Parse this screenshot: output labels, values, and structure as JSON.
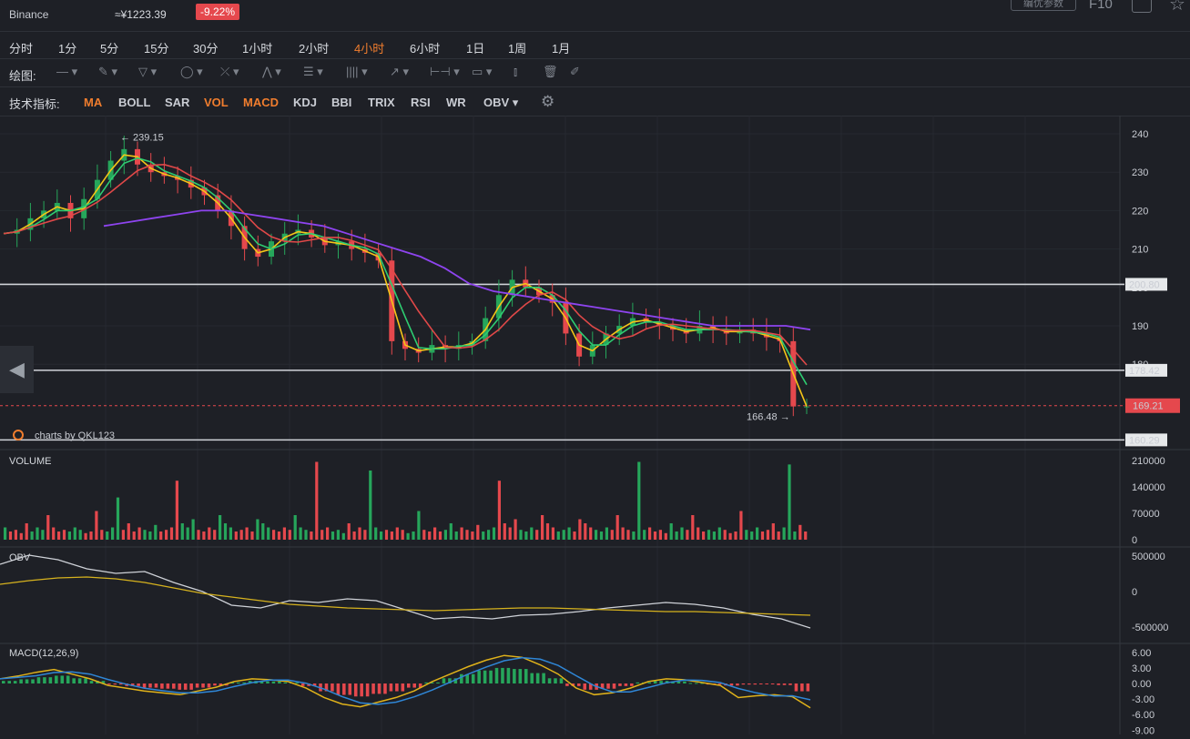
{
  "header": {
    "exchange": "Binance",
    "converted_price": "≈¥1223.39",
    "change_badge": "-9.22%",
    "settings_button": "编优参数",
    "f10_label": "F10"
  },
  "timeframes": [
    "分时",
    "1分",
    "5分",
    "15分",
    "30分",
    "1小时",
    "2小时",
    "4小时",
    "6小时",
    "1日",
    "1周",
    "1月"
  ],
  "active_timeframe": "4小时",
  "drawing_toolbar": {
    "label": "绘图:",
    "tools": [
      "line-tool-icon",
      "pen-tool-icon",
      "triangle-tool-icon",
      "circle-tool-icon",
      "cross-tool-icon",
      "pattern-tool-icon",
      "fib-tool-icon",
      "bars-tool-icon",
      "arrow-tool-icon",
      "measure-tool-icon",
      "comment-tool-icon",
      "candle-tool-icon",
      "delete-icon",
      "brush-icon"
    ]
  },
  "indicator_toolbar": {
    "label": "技术指标:",
    "items": [
      {
        "label": "MA",
        "active": true
      },
      {
        "label": "BOLL",
        "active": false
      },
      {
        "label": "SAR",
        "active": false
      },
      {
        "label": "VOL",
        "active": true
      },
      {
        "label": "MACD",
        "active": true
      },
      {
        "label": "KDJ",
        "active": false
      },
      {
        "label": "BBI",
        "active": false
      },
      {
        "label": "TRIX",
        "active": false
      },
      {
        "label": "RSI",
        "active": false
      },
      {
        "label": "WR",
        "active": false
      },
      {
        "label": "OBV ▾",
        "active": false
      }
    ]
  },
  "watermark": "charts by QKL123",
  "price_axis": {
    "ticks": [
      "240",
      "230",
      "220",
      "210",
      "200",
      "190",
      "180"
    ],
    "tick_values": [
      240,
      230,
      220,
      210,
      200,
      190,
      180
    ],
    "hlines": [
      {
        "label": "200.80",
        "value": 200.8
      },
      {
        "label": "178.42",
        "value": 178.42
      },
      {
        "label": "160.29",
        "value": 160.29
      }
    ],
    "current": {
      "label": "169.21",
      "value": 169.21
    },
    "max_marker": {
      "label": "239.15",
      "value": 239.15
    },
    "min_marker": {
      "label": "166.48",
      "value": 166.48
    }
  },
  "volume_pane": {
    "label": "VOLUME",
    "ticks": [
      "210000",
      "140000",
      "70000",
      "0"
    ],
    "tick_values": [
      210000,
      140000,
      70000,
      0
    ]
  },
  "obv_pane": {
    "label": "OBV",
    "ticks": [
      "500000",
      "0",
      "-500000"
    ],
    "tick_values": [
      500000,
      0,
      -500000
    ]
  },
  "macd_pane": {
    "label": "MACD(12,26,9)",
    "ticks": [
      "6.00",
      "3.00",
      "0.00",
      "-3.00",
      "-6.00",
      "-9.00"
    ],
    "tick_values": [
      6,
      3,
      0,
      -3,
      -6,
      -9
    ]
  },
  "colors": {
    "up": "#26a65b",
    "down": "#e5484d",
    "ma_fast": "#f5c518",
    "ma_mid": "#2ecc71",
    "ma_slow": "#e04848",
    "ma_long": "#8e44ef",
    "accent": "#f07d2e"
  },
  "series_shape": {
    "price_path": [
      214,
      215,
      218,
      220,
      222,
      218,
      223,
      228,
      233,
      236,
      232,
      230,
      229,
      228,
      226,
      224,
      220,
      216,
      210,
      208,
      212,
      214,
      215,
      213,
      211,
      212,
      210,
      209,
      207,
      186,
      184,
      183,
      185,
      184,
      185,
      186,
      192,
      198,
      202,
      200,
      198,
      196,
      188,
      182,
      185,
      188,
      190,
      192,
      191,
      190,
      189,
      188,
      190,
      189,
      188,
      189,
      188,
      187,
      186,
      169,
      169
    ],
    "ma_long_path": [
      216,
      217,
      218,
      219,
      220,
      220,
      219,
      218,
      217,
      216,
      214,
      212,
      210,
      208,
      205,
      201,
      199,
      198,
      197,
      196,
      195,
      194,
      193,
      192,
      191,
      190,
      190,
      190,
      190,
      189
    ],
    "volume_heights": [
      0.15,
      0.1,
      0.12,
      0.08,
      0.2,
      0.1,
      0.15,
      0.12,
      0.3,
      0.15,
      0.1,
      0.12,
      0.1,
      0.15,
      0.12,
      0.08,
      0.1,
      0.35,
      0.12,
      0.1,
      0.15,
      0.1,
      0.12,
      0.2,
      0.1,
      0.15,
      0.12,
      0.1,
      0.18,
      0.1,
      0.12,
      0.15,
      0.72,
      0.2,
      0.15,
      0.25,
      0.12,
      0.1,
      0.15,
      0.12,
      0.3,
      0.2,
      0.15,
      0.1,
      0.12,
      0.15,
      0.1,
      0.25,
      0.2,
      0.15,
      0.12,
      0.1,
      0.15,
      0.12,
      0.3,
      0.15,
      0.12,
      0.1,
      0.95,
      0.12
    ],
    "obv_path": [
      620,
      610,
      615,
      625,
      630,
      628,
      640,
      650,
      665,
      668,
      660,
      662,
      658,
      660,
      670,
      680,
      678,
      680,
      676,
      675,
      672,
      668,
      665,
      662,
      664,
      668,
      675,
      680,
      690
    ],
    "obv_signal_path": [
      642,
      638,
      635,
      634,
      636,
      640,
      646,
      652,
      656,
      660,
      664,
      666,
      668,
      669,
      670,
      671,
      670,
      669,
      668,
      668,
      669,
      670,
      671,
      672,
      672,
      673,
      674,
      675,
      676
    ],
    "macd_hist": [
      0.5,
      0.8,
      1.2,
      1.5,
      1.0,
      0.5,
      -0.2,
      -0.5,
      -0.8,
      -1.0,
      -1.2,
      -0.8,
      -0.4,
      0.2,
      0.5,
      0.4,
      0.2,
      -0.5,
      -1.5,
      -2.2,
      -2.5,
      -2.0,
      -1.5,
      -0.8,
      0.2,
      1.0,
      1.8,
      2.5,
      3.0,
      2.8,
      2.0,
      1.0,
      -0.5,
      -1.2,
      -1.0,
      -0.5,
      0.2,
      0.5,
      0.4,
      0.1,
      -0.2,
      -0.4,
      -0.2,
      -0.1,
      -0.3,
      -1.5
    ]
  }
}
